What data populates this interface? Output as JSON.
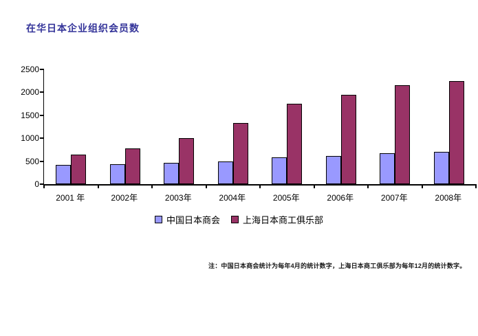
{
  "title_color": "#333399",
  "chart_data": {
    "type": "bar",
    "title": "在华日本企业组织会员数",
    "categories": [
      "2001 年",
      "2002年",
      "2003年",
      "2004年",
      "2005年",
      "2006年",
      "2007年",
      "2008年"
    ],
    "series": [
      {
        "name": "中国日本商会",
        "color": "#9999FF",
        "values": [
          420,
          440,
          470,
          490,
          580,
          620,
          680,
          700
        ]
      },
      {
        "name": "上海日本商工俱乐部",
        "color": "#993366",
        "values": [
          640,
          780,
          1000,
          1330,
          1750,
          1950,
          2160,
          2240
        ]
      }
    ],
    "xlabel": "",
    "ylabel": "",
    "ylim": [
      0,
      2500
    ],
    "ytick_step": 500,
    "yticks": [
      "0",
      "500",
      "1000",
      "1500",
      "2000",
      "2500"
    ],
    "grid": false,
    "legend_position": "bottom",
    "bar_border_color": "#000000",
    "axis_color": "#000000"
  },
  "note": {
    "text": "注：中国日本商会统计为每年4月的统计数字，上海日本商工俱乐部为每年12月的统计数字。"
  }
}
